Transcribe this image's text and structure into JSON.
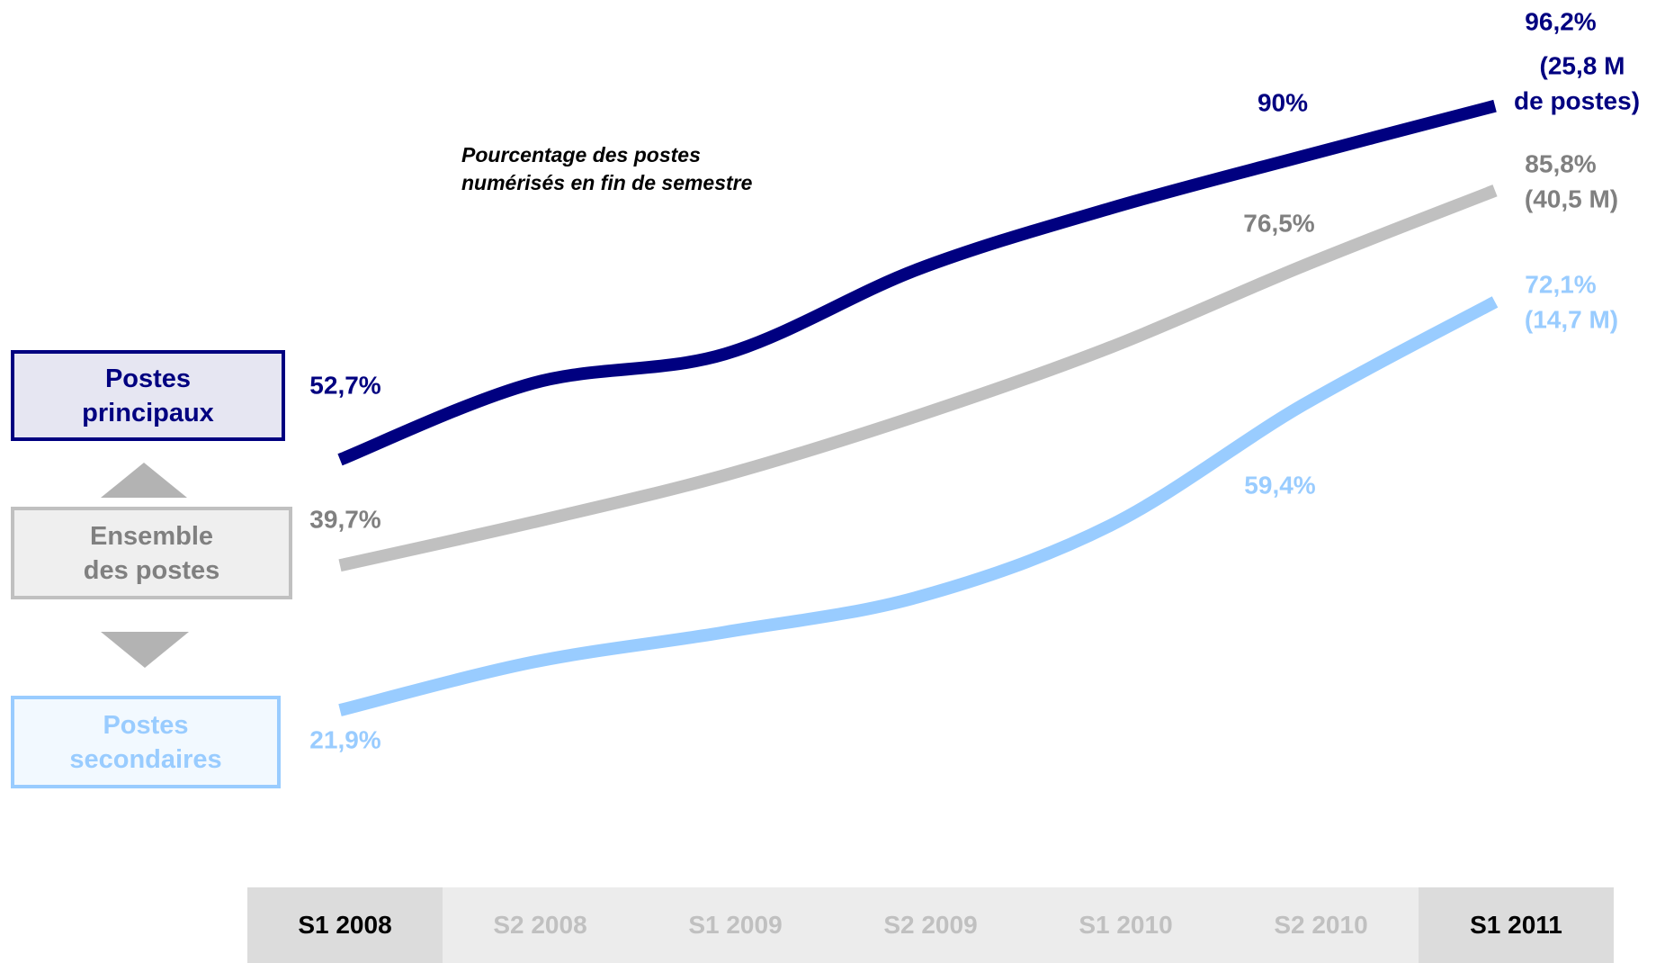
{
  "chart_data": {
    "type": "line",
    "annotation": [
      "Pourcentage des postes",
      "numérisés en fin de semestre"
    ],
    "categories": [
      "S1 2008",
      "S2 2008",
      "S1 2009",
      "S2 2009",
      "S1 2010",
      "S2 2010",
      "S1 2011"
    ],
    "highlighted_categories": [
      0,
      6
    ],
    "ylim": [
      0,
      110
    ],
    "series": [
      {
        "name": "Postes principaux",
        "color": "#000080",
        "fill": "#e6e6f2",
        "text_color": "#000080",
        "values": [
          52.7,
          62.1,
          65.7,
          76.1,
          83.6,
          90,
          96.2
        ],
        "value_labels": [
          "52,7%",
          null,
          null,
          null,
          null,
          "90%",
          "96,2%"
        ],
        "note": [
          "(25,8 M",
          "de postes)"
        ]
      },
      {
        "name": "Ensemble des postes",
        "color": "#c0c0c0",
        "fill": "#efefef",
        "text_color": "#808080",
        "values": [
          39.7,
          45,
          50.8,
          58.1,
          66.5,
          76.5,
          85.8
        ],
        "value_labels": [
          "39,7%",
          null,
          null,
          null,
          null,
          "76,5%",
          "85,8%"
        ],
        "note": [
          "(40,5 M)"
        ]
      },
      {
        "name": "Postes secondaires",
        "color": "#99ccff",
        "fill": "#f2f9ff",
        "text_color": "#99ccff",
        "values": [
          21.9,
          27.8,
          31.5,
          35.8,
          44.6,
          59.4,
          72.1
        ],
        "value_labels": [
          "21,9%",
          null,
          null,
          null,
          null,
          "59,4%",
          "72,1%"
        ],
        "note": [
          "(14,7 M)"
        ]
      }
    ]
  }
}
